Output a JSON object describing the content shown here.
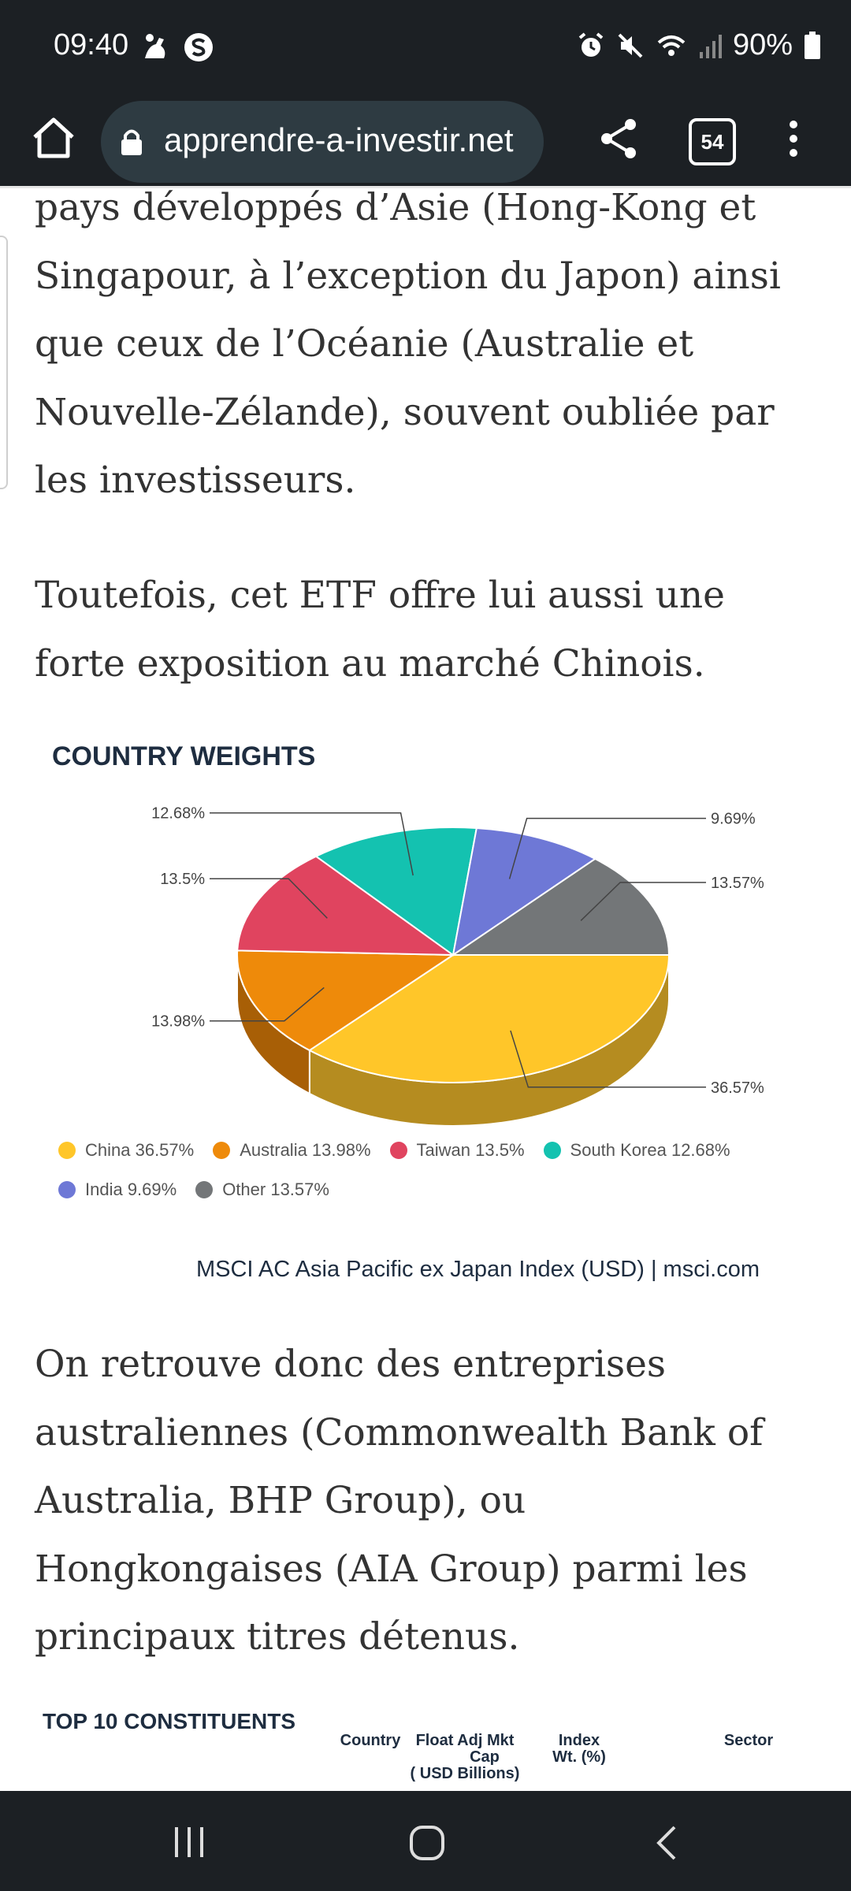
{
  "status_bar": {
    "time": "09:40",
    "battery": "90%",
    "icons": [
      "cleaner-icon",
      "s-app-icon",
      "alarm-icon",
      "mute-icon",
      "wifi-icon",
      "signal-icon",
      "battery-icon"
    ]
  },
  "browser": {
    "url": "apprendre-a-investir.net",
    "tab_count": "54",
    "icons": [
      "home-icon",
      "lock-icon",
      "share-icon",
      "tabs-icon",
      "more-vert-icon"
    ]
  },
  "article": {
    "para1": "pays développés d’Asie (Hong-Kong et Singapour, à l’exception du Japon) ainsi que ceux de l’Océanie (Australie et Nouvelle-Zélande), souvent oubliée par les investisseurs.",
    "para2": "Toutefois, cet ETF offre lui aussi une forte exposition au marché Chinois.",
    "para3": "On retrouve donc des entreprises australiennes (Commonwealth Bank of Australia, BHP Group), ou Hongkongaises (AIA Group) parmi les principaux titres détenus."
  },
  "chart_data": {
    "type": "pie",
    "title": "COUNTRY WEIGHTS",
    "labels": [
      "China",
      "Australia",
      "Taiwan",
      "South Korea",
      "India",
      "Other"
    ],
    "values": [
      36.57,
      13.98,
      13.5,
      12.68,
      9.69,
      13.57
    ],
    "value_labels": [
      "36.57%",
      "13.98%",
      "13.5%",
      "12.68%",
      "9.69%",
      "13.57%"
    ],
    "colors": [
      "#ffc629",
      "#ee8a0a",
      "#e0445f",
      "#14c2b0",
      "#6e78d6",
      "#737678"
    ],
    "side_colors": [
      "#b58c20",
      "#a85f06",
      "#9c2f42",
      "#0e8a7d",
      "#4d549a",
      "#505355"
    ],
    "legend": [
      "China 36.57%",
      "Australia 13.98%",
      "Taiwan 13.5%",
      "South Korea 12.68%",
      "India 9.69%",
      "Other 13.57%"
    ],
    "legend_placement": "bottom",
    "style": "3d-pie",
    "source": "MSCI AC Asia Pacific ex Japan Index (USD) | msci.com"
  },
  "top10": {
    "title": "TOP 10 CONSTITUENTS",
    "headers": [
      "Country",
      "Float Adj Mkt Cap ( USD Billions)",
      "Index Wt. (%)",
      "Sector"
    ],
    "header_lines": [
      [
        "Country"
      ],
      [
        "Float Adj Mkt",
        "Cap",
        "( USD Billions)"
      ],
      [
        "Index",
        "Wt. (%)"
      ],
      [
        "Sector"
      ]
    ]
  },
  "navbar": {
    "icons": [
      "recents-icon",
      "home-circle-icon",
      "back-icon"
    ]
  }
}
